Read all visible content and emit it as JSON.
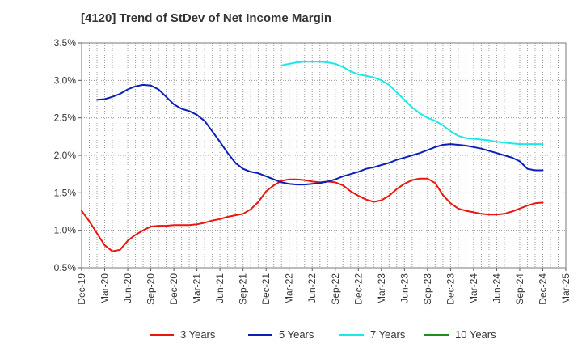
{
  "chart_data": {
    "type": "line",
    "title": "[4120]  Trend of StDev of Net Income Margin",
    "xlabel": "",
    "ylabel": "",
    "x_ticks": [
      "Dec-19",
      "Mar-20",
      "Jun-20",
      "Sep-20",
      "Dec-20",
      "Mar-21",
      "Jun-21",
      "Sep-21",
      "Dec-21",
      "Mar-22",
      "Jun-22",
      "Sep-22",
      "Dec-22",
      "Mar-23",
      "Jun-23",
      "Sep-23",
      "Dec-23",
      "Mar-24",
      "Jun-24",
      "Sep-24",
      "Dec-24",
      "Mar-25"
    ],
    "y_ticks": [
      "0.5%",
      "1.0%",
      "1.5%",
      "2.0%",
      "2.5%",
      "3.0%",
      "3.5%"
    ],
    "ylim": [
      0.5,
      3.5
    ],
    "x_unit": "month-index from Dec-19 (0 = Dec-19, 63 = Mar-25)",
    "xlim": [
      0,
      63
    ],
    "grid": true,
    "legend_position": "bottom",
    "series": [
      {
        "name": "3 Years",
        "color": "#e8170f",
        "x": [
          0,
          1,
          2,
          3,
          4,
          5,
          6,
          7,
          8,
          9,
          10,
          11,
          12,
          13,
          14,
          15,
          16,
          17,
          18,
          19,
          20,
          21,
          22,
          23,
          24,
          25,
          26,
          27,
          28,
          29,
          30,
          31,
          32,
          33,
          34,
          35,
          36,
          37,
          38,
          39,
          40,
          41,
          42,
          43,
          44,
          45,
          46,
          47,
          48,
          49,
          50,
          51,
          52,
          53,
          54,
          55,
          56,
          57,
          58,
          59,
          60
        ],
        "values": [
          1.26,
          1.12,
          0.96,
          0.8,
          0.72,
          0.74,
          0.86,
          0.94,
          1.0,
          1.05,
          1.06,
          1.06,
          1.07,
          1.07,
          1.07,
          1.08,
          1.1,
          1.13,
          1.15,
          1.18,
          1.2,
          1.22,
          1.28,
          1.38,
          1.52,
          1.6,
          1.66,
          1.68,
          1.68,
          1.67,
          1.65,
          1.64,
          1.65,
          1.64,
          1.6,
          1.52,
          1.46,
          1.41,
          1.38,
          1.4,
          1.46,
          1.55,
          1.62,
          1.67,
          1.69,
          1.69,
          1.63,
          1.47,
          1.36,
          1.29,
          1.26,
          1.24,
          1.22,
          1.21,
          1.21,
          1.22,
          1.25,
          1.29,
          1.33,
          1.36,
          1.37
        ]
      },
      {
        "name": "5 Years",
        "color": "#0a1eb8",
        "x": [
          2,
          3,
          4,
          5,
          6,
          7,
          8,
          9,
          10,
          11,
          12,
          13,
          14,
          15,
          16,
          17,
          18,
          19,
          20,
          21,
          22,
          23,
          24,
          25,
          26,
          27,
          28,
          29,
          30,
          31,
          32,
          33,
          34,
          35,
          36,
          37,
          38,
          39,
          40,
          41,
          42,
          43,
          44,
          45,
          46,
          47,
          48,
          49,
          50,
          51,
          52,
          53,
          54,
          55,
          56,
          57,
          58,
          59,
          60
        ],
        "values": [
          2.74,
          2.75,
          2.78,
          2.82,
          2.88,
          2.92,
          2.94,
          2.93,
          2.88,
          2.78,
          2.68,
          2.62,
          2.59,
          2.54,
          2.46,
          2.32,
          2.18,
          2.03,
          1.9,
          1.82,
          1.78,
          1.76,
          1.72,
          1.68,
          1.64,
          1.62,
          1.61,
          1.61,
          1.62,
          1.63,
          1.65,
          1.68,
          1.72,
          1.75,
          1.78,
          1.82,
          1.84,
          1.87,
          1.9,
          1.94,
          1.97,
          2.0,
          2.03,
          2.07,
          2.11,
          2.14,
          2.15,
          2.14,
          2.13,
          2.11,
          2.09,
          2.06,
          2.03,
          2.0,
          1.97,
          1.92,
          1.82,
          1.8,
          1.8
        ]
      },
      {
        "name": "7 Years",
        "color": "#1de8e8",
        "x": [
          26,
          27,
          28,
          29,
          30,
          31,
          32,
          33,
          34,
          35,
          36,
          37,
          38,
          39,
          40,
          41,
          42,
          43,
          44,
          45,
          46,
          47,
          48,
          49,
          50,
          51,
          52,
          53,
          54,
          55,
          56,
          57,
          58,
          59,
          60
        ],
        "values": [
          3.2,
          3.22,
          3.24,
          3.25,
          3.25,
          3.25,
          3.24,
          3.22,
          3.18,
          3.12,
          3.08,
          3.06,
          3.04,
          3.0,
          2.94,
          2.84,
          2.74,
          2.64,
          2.56,
          2.5,
          2.46,
          2.4,
          2.32,
          2.26,
          2.23,
          2.22,
          2.21,
          2.2,
          2.18,
          2.17,
          2.16,
          2.15,
          2.15,
          2.15,
          2.15
        ]
      },
      {
        "name": "10 Years",
        "color": "#1e8c1e",
        "x": [],
        "values": []
      }
    ]
  }
}
